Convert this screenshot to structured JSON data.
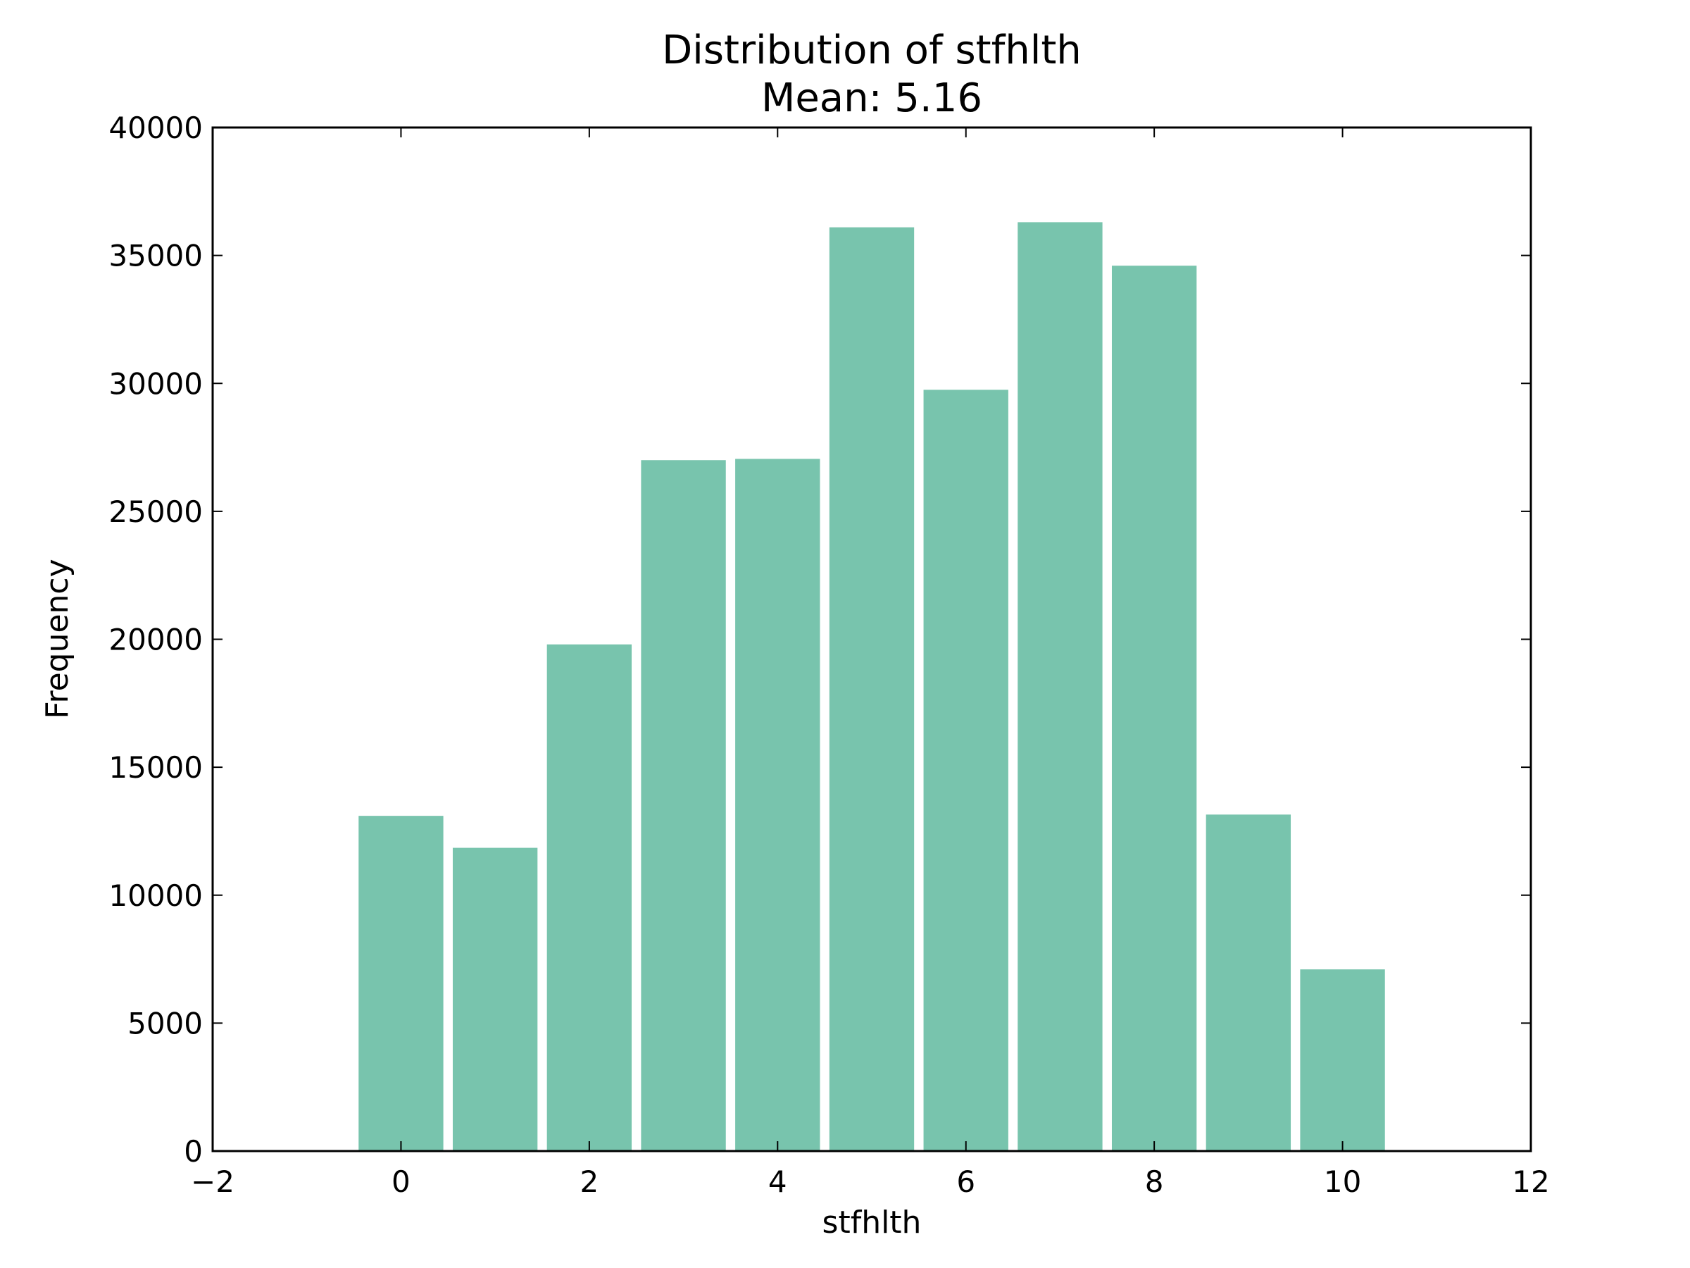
{
  "chart_data": {
    "type": "bar",
    "title": "Distribution of stfhlth",
    "subtitle": "Mean: 5.16",
    "xlabel": "stfhlth",
    "ylabel": "Frequency",
    "xlim": [
      -2,
      12
    ],
    "ylim": [
      0,
      40000
    ],
    "x_ticks": [
      -2,
      0,
      2,
      4,
      6,
      8,
      10,
      12
    ],
    "x_tick_labels": [
      "−2",
      "0",
      "2",
      "4",
      "6",
      "8",
      "10",
      "12"
    ],
    "y_ticks": [
      0,
      5000,
      10000,
      15000,
      20000,
      25000,
      30000,
      35000,
      40000
    ],
    "y_tick_labels": [
      "0",
      "5000",
      "10000",
      "15000",
      "20000",
      "25000",
      "30000",
      "35000",
      "40000"
    ],
    "bar_width": 0.9,
    "bar_color": "#78c4ad",
    "grid": false,
    "x": [
      0,
      1,
      2,
      3,
      4,
      5,
      6,
      7,
      8,
      9,
      10
    ],
    "values": [
      13100,
      11850,
      19800,
      27000,
      27050,
      36100,
      29750,
      36300,
      34600,
      13150,
      7100
    ]
  }
}
